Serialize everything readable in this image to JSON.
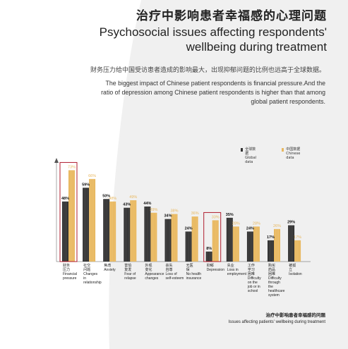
{
  "header": {
    "title_zh": "治疗中影响患者幸福感的心理问题",
    "title_en_line1": "Psychosocial issues affecting respondents'",
    "title_en_line2": "wellbeing during treatment"
  },
  "description": {
    "zh": "财务压力给中国受访患者造成的影响最大，出现抑郁问题的比例也远高于全球数据。",
    "en": "The biggest impact of Chinese patient respondents is financial pressure.And the ratio of depression among Chinese patient respondents is higher than that among global patient respondents."
  },
  "legend": {
    "global_zh": "全球数据",
    "global_en": "Global data",
    "china_zh": "中国数据",
    "china_en": "Chinese data"
  },
  "colors": {
    "global": "#333333",
    "china": "#e8b860",
    "highlight": "#b01c2e",
    "background": "#f0f0f0",
    "shape": "#ffffff"
  },
  "chart_data": {
    "type": "bar",
    "categories": [
      {
        "zh": "财务压力",
        "en": "Financial pressure"
      },
      {
        "zh": "社交问题",
        "en": "Changes in relationship"
      },
      {
        "zh": "焦虑",
        "en": "Anxiety"
      },
      {
        "zh": "害怕复发",
        "en": "Fear of relapse"
      },
      {
        "zh": "外观变化",
        "en": "Appearance changes"
      },
      {
        "zh": "丧失自尊",
        "en": "Loss of self-esteem"
      },
      {
        "zh": "无医保",
        "en": "No health insurance"
      },
      {
        "zh": "抑郁",
        "en": "Depression"
      },
      {
        "zh": "失业",
        "en": "Loss in employment"
      },
      {
        "zh": "工作学习困难",
        "en": "Difficulty on the job or in school"
      },
      {
        "zh": "购买药品困难",
        "en": "Difficulty through the healthcare system"
      },
      {
        "zh": "被孤立",
        "en": "Isolation"
      }
    ],
    "series": [
      {
        "name": "Global data",
        "values": [
          48,
          59,
          50,
          43,
          44,
          34,
          24,
          8,
          35,
          24,
          17,
          29
        ]
      },
      {
        "name": "Chinese data",
        "values": [
          73,
          66,
          48,
          49,
          39,
          38,
          36,
          33,
          28,
          28,
          26,
          17
        ]
      }
    ],
    "highlighted_categories": [
      "Financial pressure",
      "Depression"
    ],
    "ylim": [
      0,
      80
    ],
    "xlabel": "",
    "ylabel": "",
    "caption_zh": "治疗中影响患者幸福感的问题",
    "caption_en": "Issues affecting patients' wellbeing during treatment"
  }
}
